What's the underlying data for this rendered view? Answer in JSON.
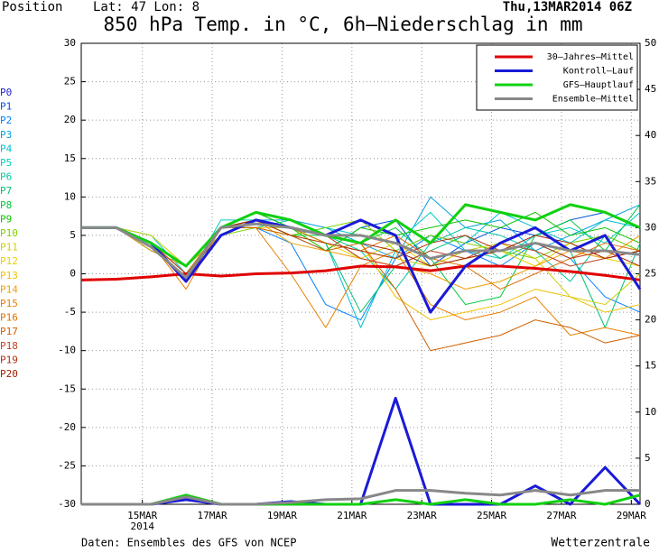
{
  "header": {
    "position": "Position",
    "location": "Lat: 47 Lon: 8",
    "run": "Thu,13MAR2014 06Z"
  },
  "footer": {
    "source": "Daten: Ensembles des GFS von NCEP",
    "brand": "Wetterzentrale"
  },
  "chart_data": {
    "type": "line",
    "title": "850 hPa Temp. in °C, 6h–Niederschlag in mm",
    "x": [
      13.25,
      14.25,
      15.25,
      16.25,
      17.25,
      18.25,
      19.25,
      20.25,
      21.25,
      22.25,
      23.25,
      24.25,
      25.25,
      26.25,
      27.25,
      28.25,
      29.25
    ],
    "xlim": [
      13.25,
      29.25
    ],
    "xticks": [
      {
        "value": 15,
        "label": "15MAR"
      },
      {
        "value": 17,
        "label": "17MAR"
      },
      {
        "value": 19,
        "label": "19MAR"
      },
      {
        "value": 21,
        "label": "21MAR"
      },
      {
        "value": 23,
        "label": "23MAR"
      },
      {
        "value": 25,
        "label": "25MAR"
      },
      {
        "value": 27,
        "label": "27MAR"
      },
      {
        "value": 29,
        "label": "29MAR"
      }
    ],
    "year_label": "2014",
    "ylim": [
      -30,
      30
    ],
    "yticks": [
      -30,
      -25,
      -20,
      -15,
      -10,
      -5,
      0,
      5,
      10,
      15,
      20,
      25,
      30
    ],
    "y2lim": [
      0,
      50
    ],
    "y2ticks": [
      0,
      5,
      10,
      15,
      20,
      25,
      30,
      35,
      40,
      45,
      50
    ],
    "grid": true,
    "legend": "top-right",
    "series": [
      {
        "name": "30–Jahres–Mittel",
        "color": "#e00000",
        "values": [
          -0.8,
          -0.7,
          -0.4,
          0,
          -0.3,
          0,
          0.1,
          0.4,
          1,
          0.9,
          0.4,
          1,
          1,
          0.7,
          0.3,
          -0.2,
          -0.8
        ]
      },
      {
        "name": "Kontroll–Lauf",
        "color": "#1a1ad8",
        "values": [
          6,
          6,
          4,
          -1,
          5,
          7,
          6,
          5,
          7,
          5,
          -5,
          1,
          4,
          6,
          3,
          5,
          -2
        ],
        "precip": [
          0,
          0,
          0,
          0.5,
          0,
          0,
          0.3,
          0,
          0,
          11.5,
          0,
          0,
          0,
          2,
          0,
          4,
          0
        ]
      },
      {
        "name": "GFS–Hauptlauf",
        "color": "#10d010",
        "values": [
          6,
          6,
          4,
          1,
          6,
          8,
          7,
          5,
          4,
          7,
          4,
          9,
          8,
          7,
          9,
          8,
          6
        ],
        "precip": [
          0,
          0,
          0,
          1,
          0,
          0,
          0,
          0,
          0,
          0.5,
          0,
          0.5,
          0,
          0,
          0.5,
          0,
          1
        ]
      },
      {
        "name": "Ensemble–Mittel",
        "color": "#888888",
        "values": [
          6,
          6,
          3.5,
          -0.5,
          6,
          6.5,
          6,
          5,
          5,
          4,
          2,
          3,
          3,
          4,
          3,
          3,
          2.5
        ],
        "precip": [
          0,
          0,
          0,
          0.8,
          0,
          0,
          0.2,
          0.5,
          0.6,
          1.5,
          1.5,
          1.2,
          1,
          1.5,
          1,
          1.5,
          1.5
        ]
      }
    ],
    "members": [
      {
        "name": "P0",
        "color": "#2020d0",
        "values": [
          6,
          6,
          4,
          -1,
          5,
          7,
          6,
          5,
          7,
          5,
          -5,
          1,
          4,
          6,
          3,
          5,
          -2
        ]
      },
      {
        "name": "P1",
        "color": "#0050e0",
        "values": [
          6,
          6,
          4,
          0,
          6,
          7,
          5,
          3,
          6,
          7,
          1,
          4,
          6,
          5,
          7,
          8,
          6
        ]
      },
      {
        "name": "P2",
        "color": "#0080ff",
        "values": [
          6,
          6,
          3,
          1,
          6,
          6,
          4,
          -4,
          -6,
          2,
          5,
          3,
          1,
          4,
          2,
          -3,
          -5
        ]
      },
      {
        "name": "P3",
        "color": "#00a0e0",
        "values": [
          6,
          6,
          4,
          1,
          5,
          7,
          7,
          6,
          4,
          2,
          10,
          6,
          7,
          3,
          5,
          7,
          9
        ]
      },
      {
        "name": "P4",
        "color": "#00c0d0",
        "values": [
          6,
          6,
          5,
          0,
          6,
          8,
          6,
          4,
          -7,
          3,
          5,
          4,
          8,
          6,
          4,
          7,
          6
        ]
      },
      {
        "name": "P5",
        "color": "#00d0c0",
        "values": [
          6,
          6,
          4,
          -1,
          7,
          7,
          5,
          6,
          5,
          4,
          8,
          3,
          2,
          5,
          6,
          4,
          8
        ]
      },
      {
        "name": "P6",
        "color": "#00c8a0",
        "values": [
          6,
          6,
          4,
          1,
          6,
          6,
          7,
          5,
          3,
          -2,
          4,
          6,
          5,
          3,
          -1,
          5,
          3
        ]
      },
      {
        "name": "P7",
        "color": "#00c070",
        "values": [
          6,
          6,
          3,
          1,
          5,
          7,
          6,
          4,
          -5,
          1,
          3,
          5,
          2,
          4,
          3,
          -7,
          4
        ]
      },
      {
        "name": "P8",
        "color": "#00c840",
        "values": [
          6,
          6,
          4,
          0,
          6,
          7,
          5,
          5,
          4,
          6,
          2,
          -4,
          -3,
          5,
          7,
          3,
          9
        ]
      },
      {
        "name": "P9",
        "color": "#10c000",
        "values": [
          6,
          6,
          4,
          -1,
          6,
          8,
          6,
          3,
          6,
          5,
          6,
          7,
          6,
          8,
          5,
          6,
          4
        ]
      },
      {
        "name": "P10",
        "color": "#80d000",
        "values": [
          6,
          6,
          4,
          1,
          5,
          6,
          5,
          6,
          7,
          3,
          5,
          4,
          3,
          2,
          4,
          5,
          3
        ]
      },
      {
        "name": "P11",
        "color": "#d0d000",
        "values": [
          6,
          6,
          5,
          1,
          6,
          7,
          6,
          4,
          3,
          2,
          1,
          3,
          4,
          2,
          -3,
          -4,
          0
        ]
      },
      {
        "name": "P12",
        "color": "#e8d000",
        "values": [
          6,
          6,
          4,
          0,
          6,
          7,
          5,
          4,
          2,
          4,
          1,
          2,
          3,
          1,
          4,
          2,
          1
        ]
      },
      {
        "name": "P13",
        "color": "#f0c000",
        "values": [
          6,
          6,
          4,
          -1,
          6,
          6,
          6,
          5,
          4,
          -3,
          -6,
          -5,
          -4,
          -2,
          -3,
          -5,
          -4
        ]
      },
      {
        "name": "P14",
        "color": "#f0a000",
        "values": [
          6,
          6,
          3,
          1,
          5,
          7,
          4,
          3,
          2,
          1,
          0,
          -2,
          -1,
          1,
          3,
          2,
          5
        ]
      },
      {
        "name": "P15",
        "color": "#e88000",
        "values": [
          6,
          6,
          4,
          -2,
          6,
          6,
          0,
          -7,
          1,
          3,
          -4,
          -6,
          -5,
          -3,
          -8,
          -7,
          -8
        ]
      },
      {
        "name": "P16",
        "color": "#e07000",
        "values": [
          6,
          6,
          4,
          0,
          6,
          7,
          6,
          4,
          3,
          5,
          2,
          1,
          -2,
          0,
          2,
          4,
          3
        ]
      },
      {
        "name": "P17",
        "color": "#d06000",
        "values": [
          6,
          6,
          4,
          1,
          6,
          6,
          5,
          3,
          4,
          -2,
          -10,
          -9,
          -8,
          -6,
          -7,
          -9,
          -8
        ]
      },
      {
        "name": "P18",
        "color": "#c04020",
        "values": [
          6,
          6,
          4,
          0,
          5,
          7,
          6,
          5,
          2,
          1,
          3,
          2,
          4,
          3,
          1,
          2,
          3
        ]
      },
      {
        "name": "P19",
        "color": "#b03010",
        "values": [
          6,
          6,
          4,
          -1,
          6,
          7,
          5,
          4,
          3,
          2,
          4,
          5,
          3,
          4,
          2,
          3,
          1
        ]
      },
      {
        "name": "P20",
        "color": "#a02000",
        "values": [
          6,
          6,
          4,
          1,
          6,
          7,
          6,
          5,
          4,
          3,
          1,
          2,
          3,
          5,
          4,
          2,
          3
        ]
      }
    ]
  }
}
